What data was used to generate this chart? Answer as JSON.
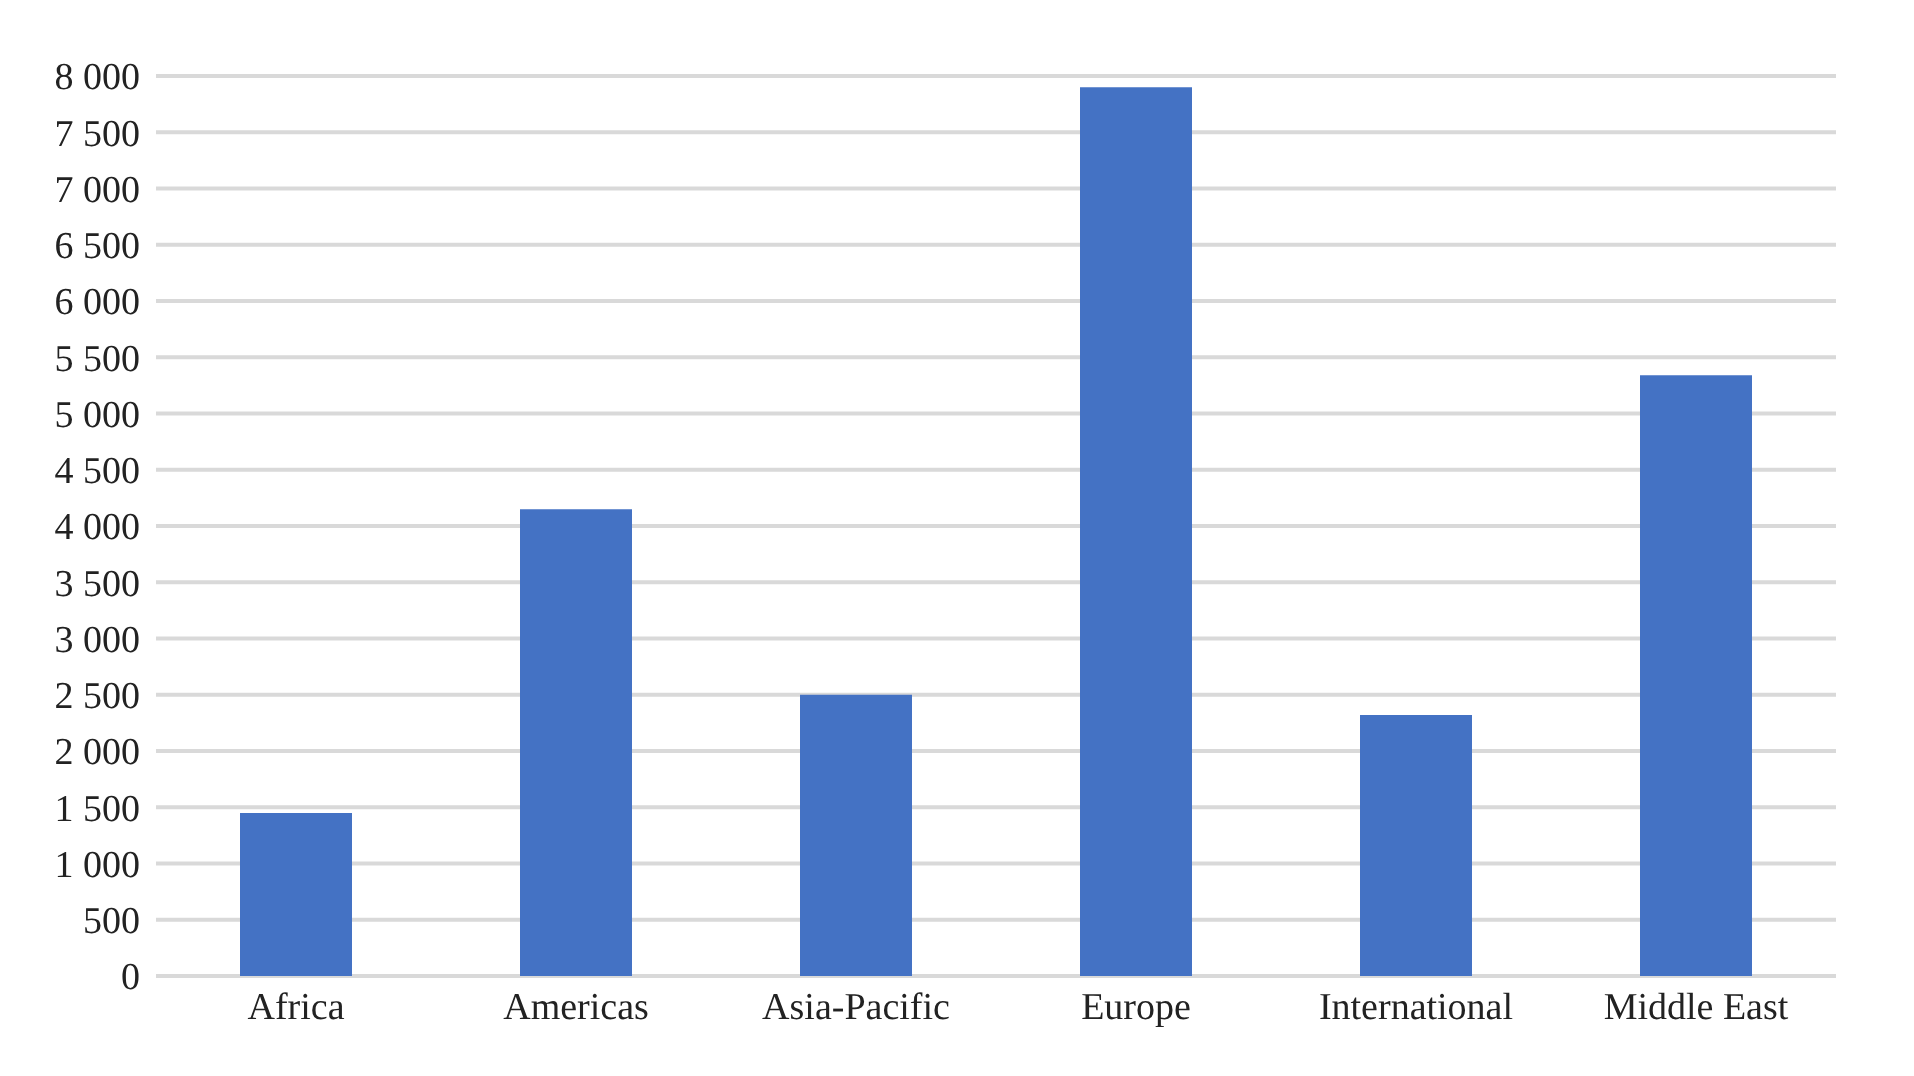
{
  "chart_data": {
    "type": "bar",
    "categories": [
      "Africa",
      "Americas",
      "Asia-Pacific",
      "Europe",
      "International",
      "Middle East"
    ],
    "values": [
      1450,
      4150,
      2500,
      7900,
      2320,
      5340
    ],
    "color": "#4472c4",
    "ylim": [
      0,
      8000
    ],
    "yticks": [
      0,
      500,
      {
        "value": 1000,
        "label": "1 000"
      },
      {
        "value": 1500,
        "label": "1 500"
      },
      {
        "value": 2000,
        "label": "2 000"
      },
      {
        "value": 2500,
        "label": "2 500"
      },
      {
        "value": 3000,
        "label": "3 000"
      },
      {
        "value": 3500,
        "label": "3 500"
      },
      {
        "value": 4000,
        "label": "4 000"
      },
      {
        "value": 4500,
        "label": "4 500"
      },
      {
        "value": 5000,
        "label": "5 000"
      },
      {
        "value": 5500,
        "label": "5 500"
      },
      {
        "value": 6000,
        "label": "6 000"
      },
      {
        "value": 6500,
        "label": "6 500"
      },
      {
        "value": 7000,
        "label": "7 000"
      },
      {
        "value": 7500,
        "label": "7 500"
      },
      {
        "value": 8000,
        "label": "8 000"
      }
    ],
    "grid": "y"
  }
}
